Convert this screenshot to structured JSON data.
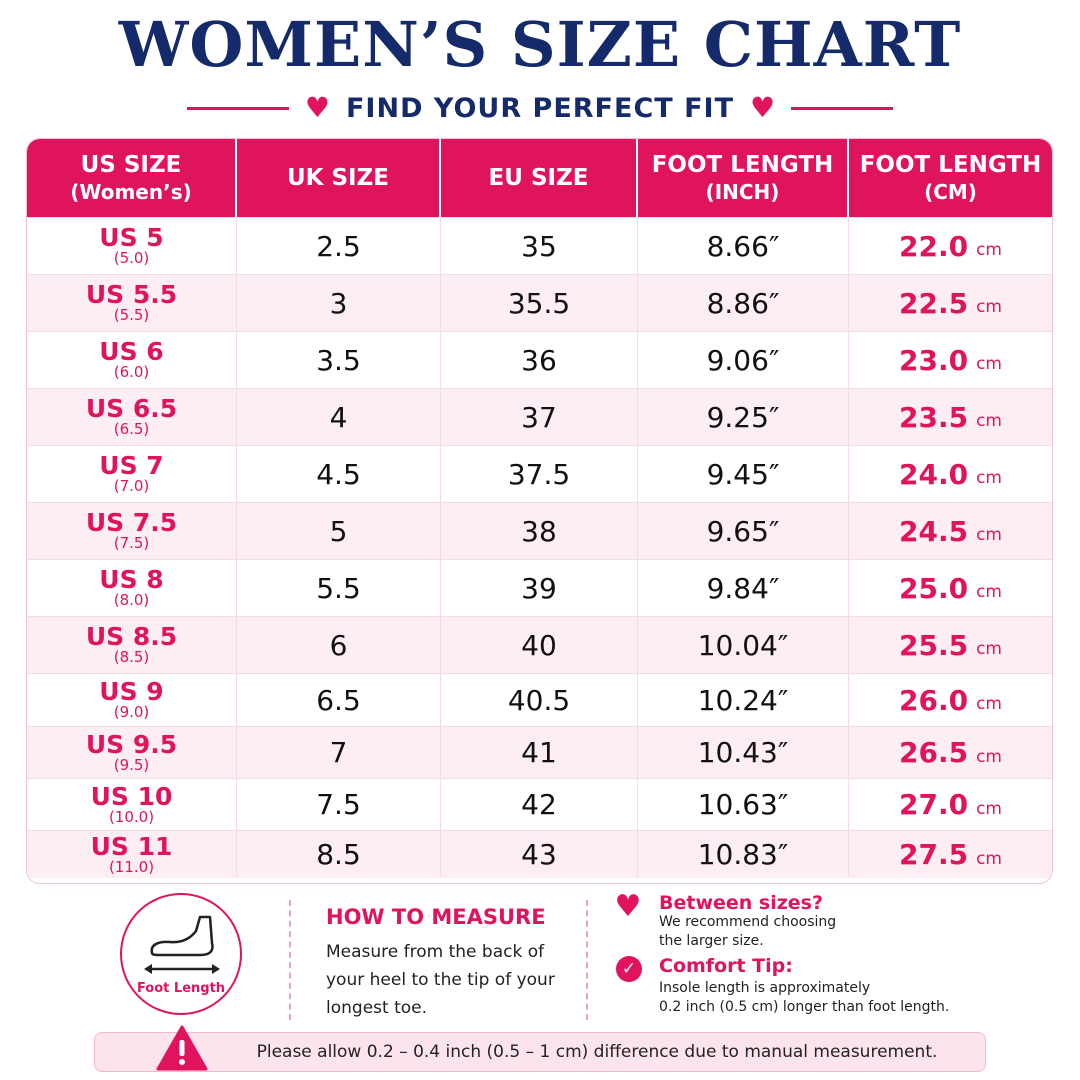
{
  "title": "WOMEN’S SIZE CHART",
  "subtitle": "FIND YOUR PERFECT FIT",
  "colors": {
    "accent": "#e0145e",
    "navy": "#142a6a",
    "row_alt": "#fdeef3"
  },
  "headers": [
    {
      "main": "US SIZE",
      "sub": "(Women’s)"
    },
    {
      "main": "UK SIZE",
      "sub": ""
    },
    {
      "main": "EU SIZE",
      "sub": ""
    },
    {
      "main": "FOOT LENGTH",
      "sub": "(INCH)"
    },
    {
      "main": "FOOT LENGTH",
      "sub": "(CM)"
    }
  ],
  "rows": [
    {
      "us": "US 5",
      "us_num": "(5.0)",
      "uk": "2.5",
      "eu": "35",
      "inch": "8.66″",
      "cm": "22.0",
      "unit": "cm"
    },
    {
      "us": "US 5.5",
      "us_num": "(5.5)",
      "uk": "3",
      "eu": "35.5",
      "inch": "8.86″",
      "cm": "22.5",
      "unit": "cm"
    },
    {
      "us": "US 6",
      "us_num": "(6.0)",
      "uk": "3.5",
      "eu": "36",
      "inch": "9.06″",
      "cm": "23.0",
      "unit": "cm"
    },
    {
      "us": "US 6.5",
      "us_num": "(6.5)",
      "uk": "4",
      "eu": "37",
      "inch": "9.25″",
      "cm": "23.5",
      "unit": "cm"
    },
    {
      "us": "US 7",
      "us_num": "(7.0)",
      "uk": "4.5",
      "eu": "37.5",
      "inch": "9.45″",
      "cm": "24.0",
      "unit": "cm"
    },
    {
      "us": "US 7.5",
      "us_num": "(7.5)",
      "uk": "5",
      "eu": "38",
      "inch": "9.65″",
      "cm": "24.5",
      "unit": "cm"
    },
    {
      "us": "US 8",
      "us_num": "(8.0)",
      "uk": "5.5",
      "eu": "39",
      "inch": "9.84″",
      "cm": "25.0",
      "unit": "cm"
    },
    {
      "us": "US 8.5",
      "us_num": "(8.5)",
      "uk": "6",
      "eu": "40",
      "inch": "10.04″",
      "cm": "25.5",
      "unit": "cm"
    },
    {
      "us": "US 9",
      "us_num": "(9.0)",
      "uk": "6.5",
      "eu": "40.5",
      "inch": "10.24″",
      "cm": "26.0",
      "unit": "cm"
    },
    {
      "us": "US 9.5",
      "us_num": "(9.5)",
      "uk": "7",
      "eu": "41",
      "inch": "10.43″",
      "cm": "26.5",
      "unit": "cm"
    },
    {
      "us": "US 10",
      "us_num": "(10.0)",
      "uk": "7.5",
      "eu": "42",
      "inch": "10.63″",
      "cm": "27.0",
      "unit": "cm"
    },
    {
      "us": "US 11",
      "us_num": "(11.0)",
      "uk": "8.5",
      "eu": "43",
      "inch": "10.83″",
      "cm": "27.5",
      "unit": "cm"
    }
  ],
  "measure": {
    "icon": "foot-measure-icon",
    "icon_label": "Foot Length",
    "title": "HOW TO MEASURE",
    "text": "Measure from the back of your heel to the tip of your longest toe."
  },
  "tips": {
    "between": {
      "icon": "heart-icon",
      "heading": "Between sizes?",
      "line1": "We recommend choosing",
      "line2": "the larger size."
    },
    "comfort": {
      "icon": "check-circle-icon",
      "heading": "Comfort Tip:",
      "line1": "Insole length is approximately",
      "line2": "0.2 inch (0.5 cm) longer than foot length."
    }
  },
  "note": {
    "icon": "warning-icon",
    "text": "Please allow 0.2 – 0.4 inch (0.5 – 1 cm) difference due to manual measurement."
  }
}
